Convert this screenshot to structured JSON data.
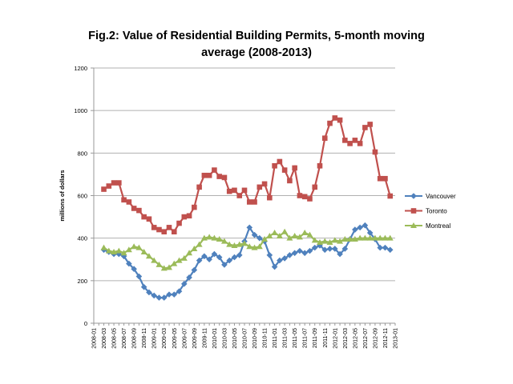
{
  "chart_data": {
    "type": "line",
    "title_line1": "Fig.2: Value of Residential Building Permits, 5-month moving",
    "title_line2": "average (2008-2013)",
    "xlabel": "",
    "ylabel": "millions of dollars",
    "ylim": [
      0,
      1200
    ],
    "yticks": [
      0,
      200,
      400,
      600,
      800,
      1000,
      1200
    ],
    "grid": true,
    "legend_placement": "right",
    "x_start": "2008-01",
    "x_end": "2013-01",
    "data_start_index": 2,
    "series": [
      {
        "name": "Vancouver",
        "color": "#4F81BD",
        "marker": "diamond",
        "values": [
          345,
          335,
          325,
          325,
          315,
          280,
          255,
          220,
          170,
          145,
          130,
          120,
          120,
          135,
          135,
          150,
          185,
          215,
          250,
          295,
          315,
          300,
          325,
          310,
          275,
          295,
          310,
          320,
          385,
          450,
          415,
          400,
          385,
          320,
          265,
          295,
          305,
          320,
          330,
          340,
          330,
          340,
          355,
          365,
          345,
          350,
          350,
          325,
          350,
          395,
          440,
          450,
          460,
          425,
          395,
          355,
          355,
          345
        ]
      },
      {
        "name": "Toronto",
        "color": "#C0504D",
        "marker": "square",
        "values": [
          630,
          645,
          660,
          660,
          580,
          570,
          540,
          530,
          500,
          490,
          450,
          440,
          430,
          450,
          430,
          470,
          500,
          505,
          545,
          640,
          695,
          695,
          720,
          690,
          685,
          620,
          625,
          600,
          625,
          570,
          570,
          640,
          655,
          590,
          740,
          760,
          720,
          670,
          730,
          600,
          595,
          585,
          640,
          740,
          870,
          940,
          965,
          955,
          860,
          845,
          860,
          845,
          920,
          935,
          805,
          680,
          680,
          598
        ]
      },
      {
        "name": "Montreal",
        "color": "#9BBB59",
        "marker": "triangle",
        "values": [
          355,
          340,
          335,
          340,
          330,
          345,
          360,
          355,
          335,
          315,
          295,
          275,
          258,
          262,
          280,
          295,
          305,
          330,
          350,
          370,
          400,
          405,
          400,
          395,
          385,
          370,
          365,
          370,
          375,
          360,
          355,
          360,
          395,
          410,
          425,
          410,
          430,
          400,
          410,
          405,
          425,
          415,
          390,
          380,
          385,
          380,
          390,
          385,
          395,
          395,
          395,
          400,
          400,
          400,
          400,
          400,
          400,
          400
        ]
      }
    ]
  }
}
